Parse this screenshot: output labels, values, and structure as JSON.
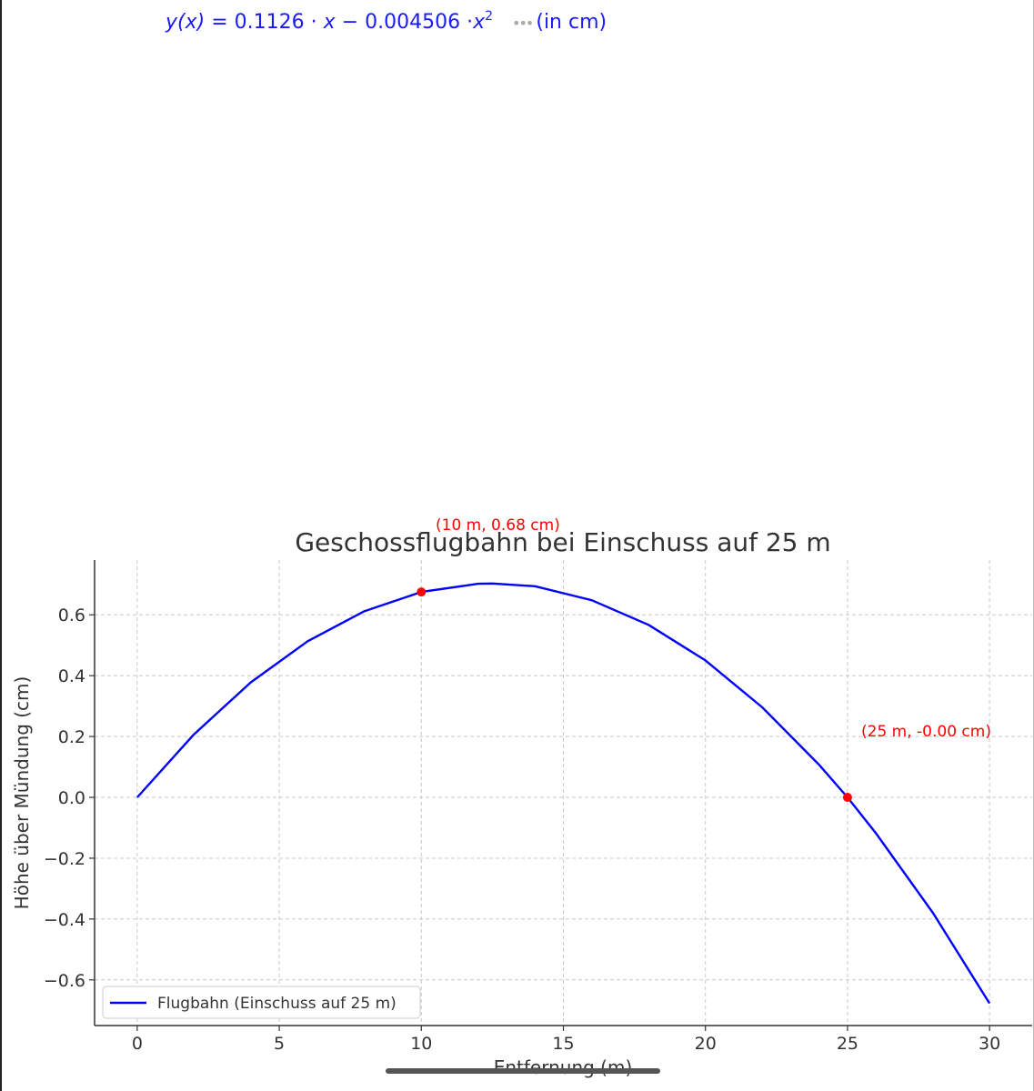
{
  "formula": {
    "lhs": "y(x)",
    "equals": "=",
    "c1": "0.1126",
    "dot1": "·",
    "x1": "x",
    "minus": "−",
    "c2": "0.004506",
    "dot2": "·",
    "x2": "x",
    "exp": "2",
    "unit": "(in cm)"
  },
  "chart_data": {
    "type": "line",
    "title": "Geschossflugbahn bei Einschuss auf 25 m",
    "xlabel": "Entfernung (m)",
    "ylabel": "Höhe über Mündung (cm)",
    "xlim": [
      -1.5,
      31.5
    ],
    "ylim": [
      -0.75,
      0.78
    ],
    "xticks": [
      0,
      5,
      10,
      15,
      20,
      25,
      30
    ],
    "xtick_labels": [
      "0",
      "5",
      "10",
      "15",
      "20",
      "25",
      "30"
    ],
    "yticks": [
      0.6,
      0.4,
      0.2,
      0.0,
      -0.2,
      -0.4,
      -0.6
    ],
    "ytick_labels": [
      "0.6",
      "0.4",
      "0.2",
      "0.0",
      "−0.2",
      "−0.4",
      "−0.6"
    ],
    "grid": true,
    "legend_position": "lower-left",
    "series": [
      {
        "name": "Flugbahn (Einschuss auf 25 m)",
        "color": "#0000ff",
        "x": [
          0,
          2,
          4,
          6,
          8,
          10,
          12,
          12.5,
          14,
          16,
          18,
          20,
          22,
          24,
          25,
          26,
          28,
          30
        ],
        "y": [
          0,
          0.207,
          0.378,
          0.513,
          0.612,
          0.675,
          0.702,
          0.703,
          0.694,
          0.648,
          0.567,
          0.45,
          0.296,
          0.107,
          0,
          -0.118,
          -0.379,
          -0.677
        ]
      }
    ],
    "points": [
      {
        "x": 10,
        "y": 0.675,
        "label": "(10 m, 0.68 cm)",
        "color": "#ff0000"
      },
      {
        "x": 25,
        "y": 0.0,
        "label": "(25 m, -0.00 cm)",
        "color": "#ff0000"
      }
    ]
  }
}
